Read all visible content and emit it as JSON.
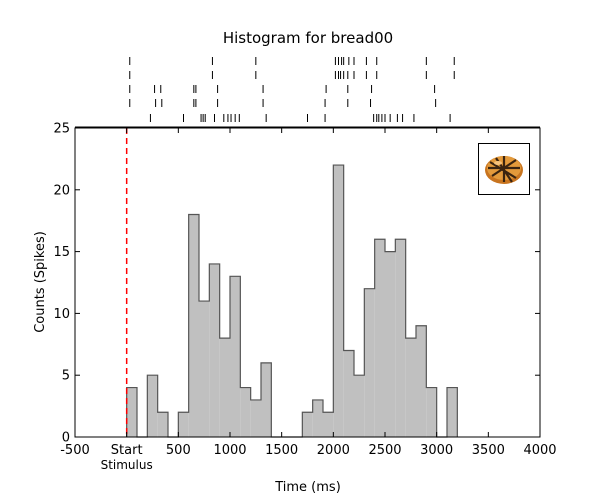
{
  "chart_data": {
    "type": "bar",
    "title": "Histogram for bread00",
    "xlabel": "Time (ms)",
    "ylabel": "Counts (Spikes)",
    "xlim": [
      -500,
      4000
    ],
    "ylim": [
      0,
      25
    ],
    "x_ticks": [
      {
        "value": -500,
        "label": "-500"
      },
      {
        "value": 0,
        "label": "Start"
      },
      {
        "value": 500,
        "label": "500"
      },
      {
        "value": 1000,
        "label": "1000"
      },
      {
        "value": 1500,
        "label": "1500"
      },
      {
        "value": 2000,
        "label": "2000"
      },
      {
        "value": 2500,
        "label": "2500"
      },
      {
        "value": 3000,
        "label": "3000"
      },
      {
        "value": 3500,
        "label": "3500"
      },
      {
        "value": 4000,
        "label": "4000"
      }
    ],
    "y_ticks": [
      0,
      5,
      10,
      15,
      20,
      25
    ],
    "stimulus": {
      "time": 0,
      "label": "Stimulus",
      "color": "#ff0000"
    },
    "bar_color": "#c0c0c0",
    "edge_color": "#555555",
    "bin_width": 100,
    "bins": [
      {
        "x": 0,
        "count": 4
      },
      {
        "x": 100,
        "count": 0
      },
      {
        "x": 200,
        "count": 5
      },
      {
        "x": 300,
        "count": 2
      },
      {
        "x": 400,
        "count": 0
      },
      {
        "x": 500,
        "count": 2
      },
      {
        "x": 600,
        "count": 18
      },
      {
        "x": 700,
        "count": 11
      },
      {
        "x": 800,
        "count": 14
      },
      {
        "x": 900,
        "count": 8
      },
      {
        "x": 1000,
        "count": 13
      },
      {
        "x": 1100,
        "count": 4
      },
      {
        "x": 1200,
        "count": 3
      },
      {
        "x": 1300,
        "count": 6
      },
      {
        "x": 1400,
        "count": 0
      },
      {
        "x": 1500,
        "count": 0
      },
      {
        "x": 1600,
        "count": 0
      },
      {
        "x": 1700,
        "count": 2
      },
      {
        "x": 1800,
        "count": 3
      },
      {
        "x": 1900,
        "count": 2
      },
      {
        "x": 2000,
        "count": 22
      },
      {
        "x": 2100,
        "count": 7
      },
      {
        "x": 2200,
        "count": 5
      },
      {
        "x": 2300,
        "count": 12
      },
      {
        "x": 2400,
        "count": 16
      },
      {
        "x": 2500,
        "count": 15
      },
      {
        "x": 2600,
        "count": 16
      },
      {
        "x": 2700,
        "count": 8
      },
      {
        "x": 2800,
        "count": 9
      },
      {
        "x": 2900,
        "count": 4
      },
      {
        "x": 3000,
        "count": 0
      },
      {
        "x": 3100,
        "count": 4
      }
    ],
    "raster": [
      [
        30,
        830,
        1250,
        2020,
        2050,
        2080,
        2100,
        2150,
        2200,
        2320,
        2420,
        2900,
        3170
      ],
      [
        30,
        830,
        1250,
        2020,
        2050,
        2070,
        2100,
        2140,
        2200,
        2320,
        2420,
        2900,
        3170
      ],
      [
        30,
        270,
        330,
        650,
        670,
        880,
        1320,
        1930,
        2140,
        2370,
        2980
      ],
      [
        30,
        280,
        340,
        650,
        670,
        880,
        1320,
        1920,
        2140,
        2360,
        2990
      ],
      [
        230,
        550,
        720,
        740,
        760,
        850,
        940,
        980,
        1010,
        1050,
        1090,
        1350,
        1750,
        1920,
        2390,
        2420,
        2440,
        2470,
        2500,
        2550,
        2620,
        2670,
        2780,
        3130
      ]
    ],
    "legend": "none",
    "grid": false
  },
  "thumbnail": {
    "name": "bread-image",
    "border_color": "#000000"
  }
}
